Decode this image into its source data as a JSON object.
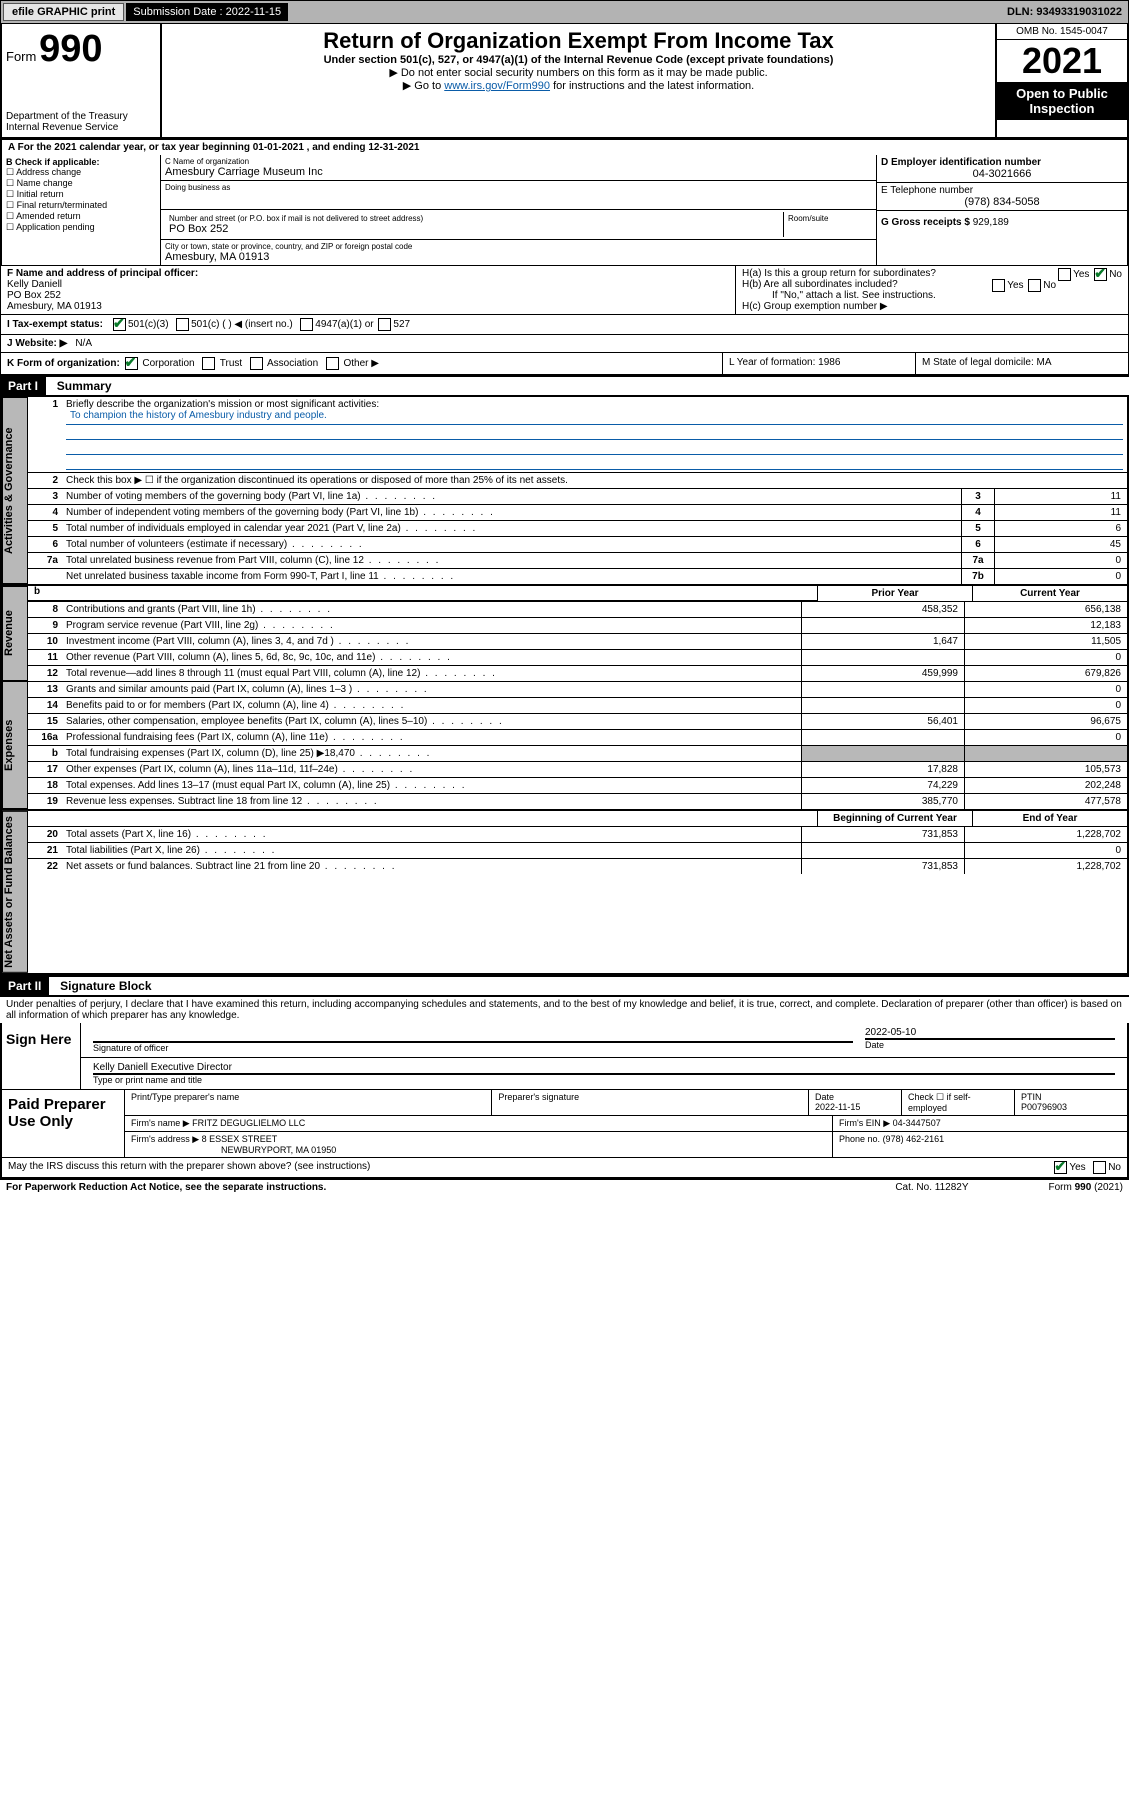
{
  "topbar": {
    "efile": "efile GRAPHIC print",
    "submission_label": "Submission Date : 2022-11-15",
    "dln": "DLN: 93493319031022"
  },
  "header": {
    "form_word": "Form",
    "form_num": "990",
    "title": "Return of Organization Exempt From Income Tax",
    "sub1": "Under section 501(c), 527, or 4947(a)(1) of the Internal Revenue Code (except private foundations)",
    "sub2": "▶ Do not enter social security numbers on this form as it may be made public.",
    "sub3_pre": "▶ Go to ",
    "sub3_link": "www.irs.gov/Form990",
    "sub3_post": " for instructions and the latest information.",
    "dept": "Department of the Treasury",
    "irs": "Internal Revenue Service",
    "omb": "OMB No. 1545-0047",
    "year": "2021",
    "otp": "Open to Public Inspection"
  },
  "A": {
    "text": "A For the 2021 calendar year, or tax year beginning 01-01-2021   , and ending 12-31-2021"
  },
  "B": {
    "label": "B Check if applicable:",
    "opts": [
      "Address change",
      "Name change",
      "Initial return",
      "Final return/terminated",
      "Amended return",
      "Application pending"
    ]
  },
  "C": {
    "name_label": "C Name of organization",
    "name": "Amesbury Carriage Museum Inc",
    "dba_label": "Doing business as",
    "dba": "",
    "street_label": "Number and street (or P.O. box if mail is not delivered to street address)",
    "room_label": "Room/suite",
    "street": "PO Box 252",
    "city_label": "City or town, state or province, country, and ZIP or foreign postal code",
    "city": "Amesbury, MA  01913"
  },
  "D": {
    "label": "D Employer identification number",
    "value": "04-3021666"
  },
  "E": {
    "label": "E Telephone number",
    "value": "(978) 834-5058"
  },
  "G": {
    "label": "G Gross receipts $",
    "value": "929,189"
  },
  "F": {
    "label": "F Name and address of principal officer:",
    "name": "Kelly Daniell",
    "addr1": "PO Box 252",
    "addr2": "Amesbury, MA  01913"
  },
  "H": {
    "a": "H(a)  Is this a group return for subordinates?",
    "a_yes": "Yes",
    "a_no": "No",
    "b": "H(b)  Are all subordinates included?",
    "b_yes": "Yes",
    "b_no": "No",
    "b_note": "If \"No,\" attach a list. See instructions.",
    "c": "H(c)  Group exemption number ▶"
  },
  "I": {
    "label": "I   Tax-exempt status:",
    "c3": "501(c)(3)",
    "c": "501(c) (   ) ◀ (insert no.)",
    "a1": "4947(a)(1) or",
    "s527": "527"
  },
  "J": {
    "label": "J   Website: ▶",
    "value": "N/A"
  },
  "K": {
    "label": "K Form of organization:",
    "opts": [
      "Corporation",
      "Trust",
      "Association",
      "Other ▶"
    ],
    "L": "L Year of formation: 1986",
    "M": "M State of legal domicile: MA"
  },
  "part1": {
    "bar": "Part I",
    "title": "Summary",
    "l1": "Briefly describe the organization's mission or most significant activities:",
    "mission": "To champion the history of Amesbury industry and people.",
    "l2": "Check this box ▶ ☐  if the organization discontinued its operations or disposed of more than 25% of its net assets.",
    "rows_ag": [
      {
        "n": "3",
        "d": "Number of voting members of the governing body (Part VI, line 1a)",
        "c": "3",
        "v": "11"
      },
      {
        "n": "4",
        "d": "Number of independent voting members of the governing body (Part VI, line 1b)",
        "c": "4",
        "v": "11"
      },
      {
        "n": "5",
        "d": "Total number of individuals employed in calendar year 2021 (Part V, line 2a)",
        "c": "5",
        "v": "6"
      },
      {
        "n": "6",
        "d": "Total number of volunteers (estimate if necessary)",
        "c": "6",
        "v": "45"
      },
      {
        "n": "7a",
        "d": "Total unrelated business revenue from Part VIII, column (C), line 12",
        "c": "7a",
        "v": "0"
      },
      {
        "n": "",
        "d": "Net unrelated business taxable income from Form 990-T, Part I, line 11",
        "c": "7b",
        "v": "0"
      }
    ],
    "col_prior": "Prior Year",
    "col_current": "Current Year",
    "revenue": [
      {
        "n": "8",
        "d": "Contributions and grants (Part VIII, line 1h)",
        "p": "458,352",
        "c": "656,138"
      },
      {
        "n": "9",
        "d": "Program service revenue (Part VIII, line 2g)",
        "p": "",
        "c": "12,183"
      },
      {
        "n": "10",
        "d": "Investment income (Part VIII, column (A), lines 3, 4, and 7d )",
        "p": "1,647",
        "c": "11,505"
      },
      {
        "n": "11",
        "d": "Other revenue (Part VIII, column (A), lines 5, 6d, 8c, 9c, 10c, and 11e)",
        "p": "",
        "c": "0"
      },
      {
        "n": "12",
        "d": "Total revenue—add lines 8 through 11 (must equal Part VIII, column (A), line 12)",
        "p": "459,999",
        "c": "679,826"
      }
    ],
    "expenses": [
      {
        "n": "13",
        "d": "Grants and similar amounts paid (Part IX, column (A), lines 1–3 )",
        "p": "",
        "c": "0"
      },
      {
        "n": "14",
        "d": "Benefits paid to or for members (Part IX, column (A), line 4)",
        "p": "",
        "c": "0"
      },
      {
        "n": "15",
        "d": "Salaries, other compensation, employee benefits (Part IX, column (A), lines 5–10)",
        "p": "56,401",
        "c": "96,675"
      },
      {
        "n": "16a",
        "d": "Professional fundraising fees (Part IX, column (A), line 11e)",
        "p": "",
        "c": "0"
      },
      {
        "n": "b",
        "d": "Total fundraising expenses (Part IX, column (D), line 25) ▶18,470",
        "p": "grey",
        "c": "grey"
      },
      {
        "n": "17",
        "d": "Other expenses (Part IX, column (A), lines 11a–11d, 11f–24e)",
        "p": "17,828",
        "c": "105,573"
      },
      {
        "n": "18",
        "d": "Total expenses. Add lines 13–17 (must equal Part IX, column (A), line 25)",
        "p": "74,229",
        "c": "202,248"
      },
      {
        "n": "19",
        "d": "Revenue less expenses. Subtract line 18 from line 12",
        "p": "385,770",
        "c": "477,578"
      }
    ],
    "col_beg": "Beginning of Current Year",
    "col_end": "End of Year",
    "netassets": [
      {
        "n": "20",
        "d": "Total assets (Part X, line 16)",
        "p": "731,853",
        "c": "1,228,702"
      },
      {
        "n": "21",
        "d": "Total liabilities (Part X, line 26)",
        "p": "",
        "c": "0"
      },
      {
        "n": "22",
        "d": "Net assets or fund balances. Subtract line 21 from line 20",
        "p": "731,853",
        "c": "1,228,702"
      }
    ]
  },
  "side": {
    "ag": "Activities & Governance",
    "rev": "Revenue",
    "exp": "Expenses",
    "na": "Net Assets or Fund Balances"
  },
  "part2": {
    "bar": "Part II",
    "title": "Signature Block",
    "decl": "Under penalties of perjury, I declare that I have examined this return, including accompanying schedules and statements, and to the best of my knowledge and belief, it is true, correct, and complete. Declaration of preparer (other than officer) is based on all information of which preparer has any knowledge.",
    "sign_here": "Sign Here",
    "sig_officer": "Signature of officer",
    "sig_date_label": "Date",
    "sig_date": "2022-05-10",
    "officer": "Kelly Daniell  Executive Director",
    "type_name": "Type or print name and title",
    "paid": "Paid Preparer Use Only",
    "p_name_label": "Print/Type preparer's name",
    "p_sig_label": "Preparer's signature",
    "p_date_label": "Date",
    "p_date": "2022-11-15",
    "p_check": "Check ☐ if self-employed",
    "ptin_label": "PTIN",
    "ptin": "P00796903",
    "firm_name_label": "Firm's name    ▶",
    "firm_name": "FRITZ DEGUGLIELMO LLC",
    "firm_ein_label": "Firm's EIN ▶",
    "firm_ein": "04-3447507",
    "firm_addr_label": "Firm's address ▶",
    "firm_addr1": "8 ESSEX STREET",
    "firm_addr2": "NEWBURYPORT, MA  01950",
    "phone_label": "Phone no.",
    "phone": "(978) 462-2161",
    "discuss": "May the IRS discuss this return with the preparer shown above? (see instructions)",
    "d_yes": "Yes",
    "d_no": "No"
  },
  "footer": {
    "pra": "For Paperwork Reduction Act Notice, see the separate instructions.",
    "cat": "Cat. No. 11282Y",
    "form": "Form 990 (2021)"
  }
}
